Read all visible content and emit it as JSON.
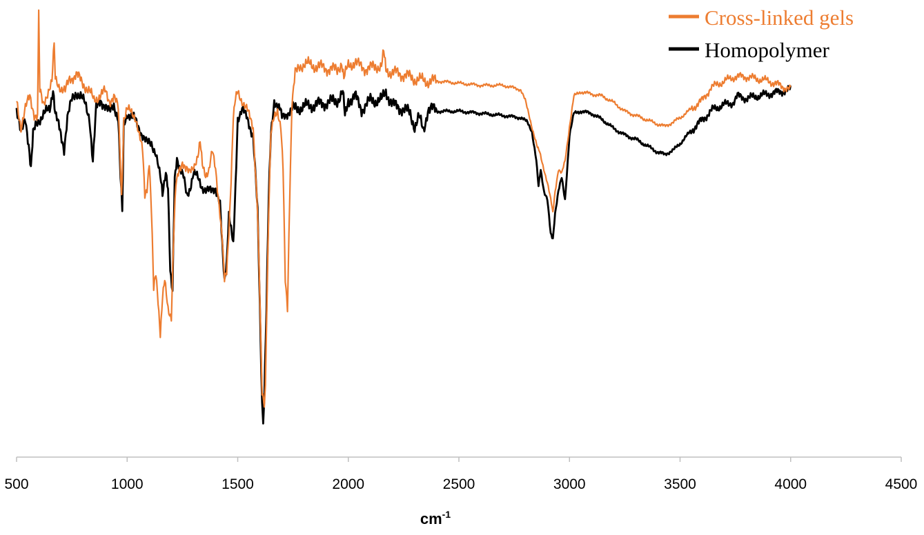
{
  "chart_data": {
    "type": "line",
    "title": "",
    "xlabel": "cm",
    "xlabel_superscript": "-1",
    "ylabel": "",
    "xlim": [
      500,
      4500
    ],
    "xticks": [
      500,
      1000,
      1500,
      2000,
      2500,
      3000,
      3500,
      4000,
      4500
    ],
    "grid": false,
    "y_axis_visible": false,
    "legend_position": "top-right",
    "series": [
      {
        "name": "Cross-linked gels",
        "color": "#ED7D31",
        "points": [
          [
            500,
            78
          ],
          [
            520,
            72
          ],
          [
            540,
            76
          ],
          [
            560,
            79
          ],
          [
            580,
            75
          ],
          [
            595,
            74
          ],
          [
            600,
            98
          ],
          [
            605,
            80
          ],
          [
            620,
            77
          ],
          [
            640,
            80
          ],
          [
            660,
            82
          ],
          [
            670,
            91
          ],
          [
            675,
            83
          ],
          [
            700,
            81
          ],
          [
            720,
            80
          ],
          [
            740,
            83
          ],
          [
            770,
            84
          ],
          [
            800,
            82
          ],
          [
            830,
            80
          ],
          [
            850,
            78
          ],
          [
            870,
            79
          ],
          [
            900,
            80
          ],
          [
            920,
            78
          ],
          [
            940,
            79
          ],
          [
            960,
            76
          ],
          [
            975,
            56
          ],
          [
            985,
            74
          ],
          [
            1000,
            76
          ],
          [
            1040,
            74
          ],
          [
            1070,
            66
          ],
          [
            1080,
            56
          ],
          [
            1090,
            58
          ],
          [
            1100,
            64
          ],
          [
            1110,
            52
          ],
          [
            1120,
            34
          ],
          [
            1130,
            38
          ],
          [
            1140,
            32
          ],
          [
            1150,
            24
          ],
          [
            1160,
            32
          ],
          [
            1170,
            36
          ],
          [
            1185,
            30
          ],
          [
            1200,
            28
          ],
          [
            1210,
            46
          ],
          [
            1220,
            58
          ],
          [
            1235,
            62
          ],
          [
            1250,
            64
          ],
          [
            1265,
            62
          ],
          [
            1280,
            61
          ],
          [
            1300,
            63
          ],
          [
            1320,
            65
          ],
          [
            1330,
            68
          ],
          [
            1340,
            63
          ],
          [
            1355,
            61
          ],
          [
            1370,
            62
          ],
          [
            1385,
            66
          ],
          [
            1400,
            62
          ],
          [
            1420,
            52
          ],
          [
            1430,
            46
          ],
          [
            1440,
            36
          ],
          [
            1450,
            38
          ],
          [
            1460,
            48
          ],
          [
            1470,
            60
          ],
          [
            1480,
            74
          ],
          [
            1490,
            78
          ],
          [
            1500,
            80
          ],
          [
            1520,
            78
          ],
          [
            1540,
            76
          ],
          [
            1570,
            72
          ],
          [
            1590,
            52
          ],
          [
            1600,
            32
          ],
          [
            1610,
            10
          ],
          [
            1620,
            8
          ],
          [
            1625,
            12
          ],
          [
            1630,
            26
          ],
          [
            1640,
            52
          ],
          [
            1650,
            70
          ],
          [
            1665,
            74
          ],
          [
            1680,
            76
          ],
          [
            1695,
            72
          ],
          [
            1705,
            62
          ],
          [
            1715,
            36
          ],
          [
            1725,
            30
          ],
          [
            1735,
            56
          ],
          [
            1745,
            77
          ],
          [
            1760,
            84
          ],
          [
            1780,
            86
          ],
          [
            1800,
            86.5
          ],
          [
            1850,
            86
          ],
          [
            1900,
            85.5
          ],
          [
            1950,
            85
          ],
          [
            1970,
            87
          ],
          [
            1980,
            83
          ],
          [
            2000,
            86
          ],
          [
            2030,
            87
          ],
          [
            2050,
            86
          ],
          [
            2070,
            85.5
          ],
          [
            2100,
            85.5
          ],
          [
            2130,
            86
          ],
          [
            2150,
            86
          ],
          [
            2160,
            89
          ],
          [
            2170,
            85
          ],
          [
            2200,
            84.5
          ],
          [
            2250,
            84
          ],
          [
            2300,
            83
          ],
          [
            2350,
            82.5
          ],
          [
            2400,
            82.5
          ],
          [
            2500,
            82
          ],
          [
            2600,
            81.5
          ],
          [
            2700,
            81.5
          ],
          [
            2780,
            80.5
          ],
          [
            2800,
            78
          ],
          [
            2820,
            74
          ],
          [
            2840,
            70
          ],
          [
            2855,
            67
          ],
          [
            2865,
            66
          ],
          [
            2880,
            63
          ],
          [
            2900,
            59
          ],
          [
            2915,
            55
          ],
          [
            2925,
            52
          ],
          [
            2935,
            57
          ],
          [
            2950,
            62
          ],
          [
            2965,
            61
          ],
          [
            2980,
            64
          ],
          [
            3000,
            72
          ],
          [
            3020,
            79
          ],
          [
            3050,
            80
          ],
          [
            3100,
            79.5
          ],
          [
            3150,
            79
          ],
          [
            3200,
            77.5
          ],
          [
            3250,
            75.5
          ],
          [
            3300,
            74.5
          ],
          [
            3350,
            73.5
          ],
          [
            3400,
            72.5
          ],
          [
            3430,
            72
          ],
          [
            3470,
            73
          ],
          [
            3500,
            74
          ],
          [
            3550,
            76
          ],
          [
            3600,
            78
          ],
          [
            3640,
            81
          ],
          [
            3700,
            82.5
          ],
          [
            3750,
            83.5
          ],
          [
            3800,
            83.5
          ],
          [
            3850,
            83
          ],
          [
            3900,
            82.5
          ],
          [
            3950,
            81.5
          ],
          [
            4000,
            80.5
          ]
        ]
      },
      {
        "name": "Homopolymer",
        "color": "#000000",
        "points": [
          [
            500,
            76
          ],
          [
            520,
            70
          ],
          [
            540,
            74
          ],
          [
            555,
            68
          ],
          [
            565,
            62
          ],
          [
            575,
            70
          ],
          [
            590,
            73
          ],
          [
            610,
            74
          ],
          [
            630,
            75
          ],
          [
            650,
            76
          ],
          [
            665,
            81
          ],
          [
            675,
            75
          ],
          [
            690,
            72
          ],
          [
            700,
            70
          ],
          [
            715,
            67
          ],
          [
            730,
            74
          ],
          [
            750,
            78
          ],
          [
            770,
            80
          ],
          [
            790,
            79
          ],
          [
            810,
            77
          ],
          [
            830,
            74
          ],
          [
            845,
            64
          ],
          [
            860,
            76
          ],
          [
            880,
            78
          ],
          [
            900,
            77
          ],
          [
            920,
            75
          ],
          [
            940,
            77
          ],
          [
            960,
            74
          ],
          [
            970,
            60
          ],
          [
            978,
            52
          ],
          [
            985,
            72
          ],
          [
            1000,
            75
          ],
          [
            1030,
            74
          ],
          [
            1050,
            72
          ],
          [
            1070,
            70
          ],
          [
            1090,
            68
          ],
          [
            1110,
            68
          ],
          [
            1130,
            66
          ],
          [
            1150,
            60
          ],
          [
            1160,
            56
          ],
          [
            1175,
            62
          ],
          [
            1185,
            58
          ],
          [
            1195,
            38
          ],
          [
            1205,
            33
          ],
          [
            1215,
            60
          ],
          [
            1225,
            65
          ],
          [
            1240,
            62
          ],
          [
            1255,
            60
          ],
          [
            1270,
            56
          ],
          [
            1285,
            58
          ],
          [
            1300,
            61
          ],
          [
            1320,
            60
          ],
          [
            1340,
            58
          ],
          [
            1360,
            57
          ],
          [
            1380,
            57
          ],
          [
            1400,
            58
          ],
          [
            1420,
            54
          ],
          [
            1430,
            44
          ],
          [
            1440,
            36
          ],
          [
            1450,
            41
          ],
          [
            1460,
            52
          ],
          [
            1470,
            48
          ],
          [
            1480,
            44
          ],
          [
            1490,
            58
          ],
          [
            1500,
            74
          ],
          [
            1520,
            76
          ],
          [
            1540,
            74
          ],
          [
            1570,
            70
          ],
          [
            1590,
            52
          ],
          [
            1600,
            30
          ],
          [
            1610,
            8
          ],
          [
            1615,
            4
          ],
          [
            1620,
            10
          ],
          [
            1630,
            30
          ],
          [
            1640,
            55
          ],
          [
            1650,
            70
          ],
          [
            1665,
            78
          ],
          [
            1680,
            77
          ],
          [
            1690,
            76
          ],
          [
            1700,
            74
          ],
          [
            1720,
            75
          ],
          [
            1750,
            76
          ],
          [
            1800,
            76.5
          ],
          [
            1850,
            77
          ],
          [
            1900,
            77.5
          ],
          [
            1950,
            78
          ],
          [
            1975,
            80
          ],
          [
            1985,
            74
          ],
          [
            2000,
            78
          ],
          [
            2030,
            79
          ],
          [
            2060,
            76
          ],
          [
            2100,
            78
          ],
          [
            2150,
            78
          ],
          [
            2170,
            80
          ],
          [
            2200,
            77
          ],
          [
            2250,
            76
          ],
          [
            2280,
            75
          ],
          [
            2300,
            72
          ],
          [
            2320,
            74
          ],
          [
            2340,
            71
          ],
          [
            2360,
            76
          ],
          [
            2380,
            76
          ],
          [
            2400,
            75.5
          ],
          [
            2500,
            75.5
          ],
          [
            2600,
            75
          ],
          [
            2700,
            74.5
          ],
          [
            2780,
            74
          ],
          [
            2810,
            73
          ],
          [
            2830,
            71
          ],
          [
            2850,
            64
          ],
          [
            2860,
            58
          ],
          [
            2870,
            62
          ],
          [
            2885,
            57
          ],
          [
            2900,
            55
          ],
          [
            2915,
            47
          ],
          [
            2925,
            46
          ],
          [
            2935,
            52
          ],
          [
            2950,
            57
          ],
          [
            2965,
            60
          ],
          [
            2980,
            55
          ],
          [
            3000,
            70
          ],
          [
            3020,
            75
          ],
          [
            3050,
            75.5
          ],
          [
            3100,
            75
          ],
          [
            3150,
            73.5
          ],
          [
            3200,
            71.5
          ],
          [
            3250,
            70
          ],
          [
            3300,
            69
          ],
          [
            3350,
            67.5
          ],
          [
            3400,
            66
          ],
          [
            3430,
            65.5
          ],
          [
            3470,
            66.5
          ],
          [
            3500,
            68
          ],
          [
            3550,
            71
          ],
          [
            3600,
            73.5
          ],
          [
            3650,
            76
          ],
          [
            3700,
            77
          ],
          [
            3740,
            77.5
          ],
          [
            3760,
            79
          ],
          [
            3800,
            78.5
          ],
          [
            3850,
            79
          ],
          [
            3900,
            79.5
          ],
          [
            3950,
            80
          ],
          [
            4000,
            80.5
          ]
        ]
      }
    ]
  }
}
